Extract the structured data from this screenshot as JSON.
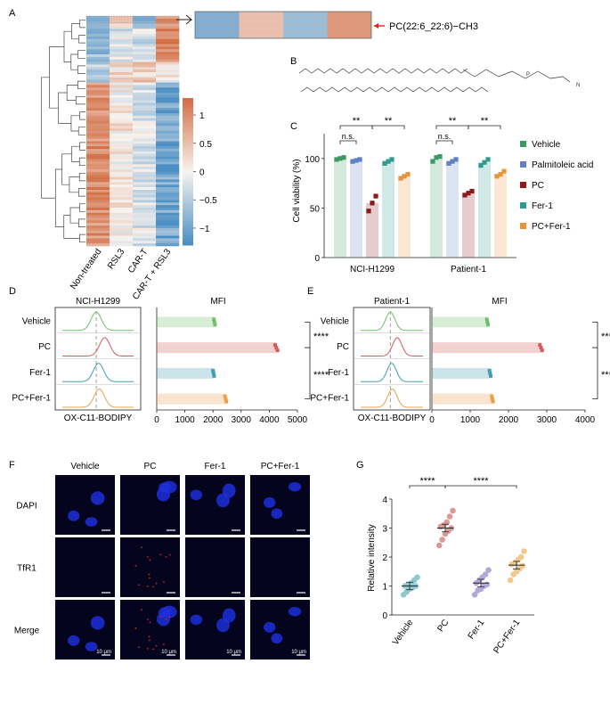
{
  "panel_labels": {
    "A": "A",
    "B": "B",
    "C": "C",
    "D": "D",
    "E": "E",
    "F": "F",
    "G": "G"
  },
  "heatmap": {
    "columns": [
      "Non-treated",
      "RSL3",
      "CAR-T",
      "CAR-T + RSL3"
    ],
    "highlight_label": "PC(22:6_22:6)−CH3",
    "colorbar_ticks": [
      "1",
      "0.5",
      "0",
      "−0.5",
      "−1"
    ],
    "colorbar_range": [
      -1.3,
      1.3
    ],
    "colors": {
      "high": "#d36f45",
      "mid": "#f7f3ef",
      "low": "#4c8fc4"
    }
  },
  "chart_data": [
    {
      "panel": "C",
      "type": "bar",
      "categories": [
        "NCI-H1299",
        "Patient-1"
      ],
      "ylabel": "Cell viability (%)",
      "ylim": [
        0,
        125
      ],
      "yticks": [
        "0",
        "50",
        "100"
      ],
      "series": [
        {
          "name": "Vehicle",
          "color": "#3b9a62",
          "values": [
            100,
            100
          ],
          "points": [
            [
              99,
              100,
              101
            ],
            [
              97,
              101,
              102
            ]
          ]
        },
        {
          "name": "Palmitoleic acid",
          "color": "#5f7fc6",
          "values": [
            98,
            97
          ],
          "points": [
            [
              97,
              98,
              99
            ],
            [
              95,
              97,
              99
            ]
          ]
        },
        {
          "name": "PC",
          "color": "#8b1a1a",
          "values": [
            55,
            65
          ],
          "points": [
            [
              47,
              55,
              62
            ],
            [
              63,
              65,
              67
            ]
          ]
        },
        {
          "name": "Fer-1",
          "color": "#2f9a8e",
          "values": [
            97,
            96
          ],
          "points": [
            [
              95,
              97,
              99
            ],
            [
              93,
              96,
              99
            ]
          ]
        },
        {
          "name": "PC+Fer-1",
          "color": "#e8953a",
          "values": [
            82,
            84
          ],
          "points": [
            [
              80,
              82,
              84
            ],
            [
              82,
              84,
              87
            ]
          ]
        }
      ],
      "significance": [
        {
          "label": "n.s."
        },
        {
          "label": "**"
        },
        {
          "label": "**"
        },
        {
          "label": "n.s."
        },
        {
          "label": "**"
        },
        {
          "label": "**"
        }
      ]
    },
    {
      "panel": "D",
      "type": "bar",
      "orientation": "horizontal",
      "histogram_title": "NCI-H1299",
      "histogram_xlabel": "OX-C11-BODIPY",
      "title": "MFI",
      "categories": [
        "Vehicle",
        "PC",
        "Fer-1",
        "PC+Fer-1"
      ],
      "values": [
        2050,
        4250,
        2020,
        2450
      ],
      "colors": [
        "#6fbf68",
        "#d35b5b",
        "#3f9fb0",
        "#eaa04a"
      ],
      "xlim": [
        0,
        5000
      ],
      "xticks": [
        "0",
        "1000",
        "2000",
        "3000",
        "4000",
        "5000"
      ],
      "histogram_peaks": [
        0.0,
        0.55,
        0.15,
        0.2
      ],
      "significance": [
        "****",
        "****"
      ]
    },
    {
      "panel": "E",
      "type": "bar",
      "orientation": "horizontal",
      "histogram_title": "Patient-1",
      "histogram_xlabel": "OX-C11-BODIPY",
      "title": "MFI",
      "categories": [
        "Vehicle",
        "PC",
        "Fer-1",
        "PC+Fer-1"
      ],
      "values": [
        1450,
        2850,
        1520,
        1580
      ],
      "colors": [
        "#6fbf68",
        "#d35b5b",
        "#3f9fb0",
        "#eaa04a"
      ],
      "xlim": [
        0,
        4000
      ],
      "xticks": [
        "0",
        "1000",
        "2000",
        "3000",
        "4000"
      ],
      "histogram_peaks": [
        0.0,
        0.5,
        0.1,
        0.15
      ],
      "significance": [
        "****",
        "****"
      ]
    },
    {
      "panel": "G",
      "type": "scatter",
      "categories": [
        "Vehicle",
        "PC",
        "Fer-1",
        "PC+Fer-1"
      ],
      "ylabel": "Relative intensity",
      "ylim": [
        0,
        4
      ],
      "yticks": [
        "0",
        "1",
        "2",
        "3",
        "4"
      ],
      "colors": [
        "#8fc9cf",
        "#d79a96",
        "#b4a7d9",
        "#f3c88f"
      ],
      "means": [
        1.0,
        3.0,
        1.1,
        1.72
      ],
      "points": [
        [
          0.7,
          0.8,
          0.9,
          0.95,
          1.0,
          1.0,
          1.05,
          1.1,
          1.2,
          1.3
        ],
        [
          2.4,
          2.6,
          2.8,
          2.9,
          3.0,
          3.05,
          3.1,
          3.2,
          3.4,
          3.6
        ],
        [
          0.7,
          0.85,
          0.9,
          1.0,
          1.05,
          1.1,
          1.2,
          1.3,
          1.4,
          1.55
        ],
        [
          1.2,
          1.4,
          1.5,
          1.6,
          1.7,
          1.75,
          1.8,
          1.9,
          2.0,
          2.2
        ]
      ],
      "significance": [
        "****",
        "****"
      ]
    }
  ],
  "microscopy": {
    "columns": [
      "Vehicle",
      "PC",
      "Fer-1",
      "PC+Fer-1"
    ],
    "rows": [
      "DAPI",
      "TfR1",
      "Merge"
    ],
    "scalebar_label": "10 μm"
  }
}
